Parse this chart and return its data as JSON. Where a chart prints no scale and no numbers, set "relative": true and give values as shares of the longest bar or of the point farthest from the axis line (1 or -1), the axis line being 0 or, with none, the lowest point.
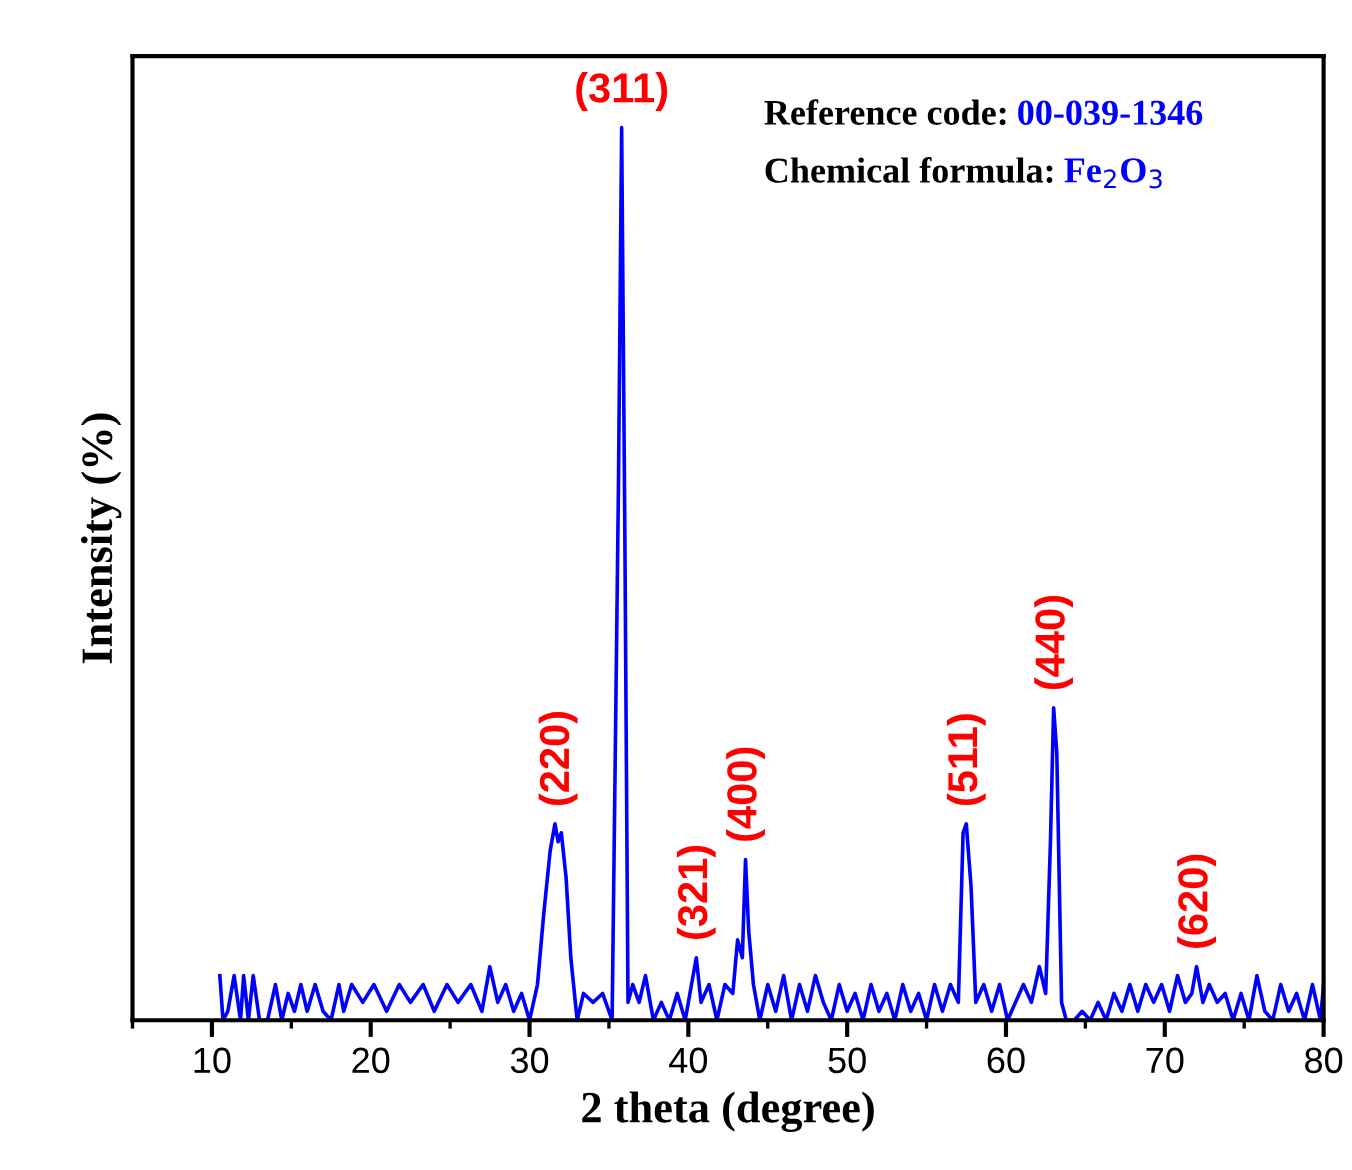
{
  "chart_data": {
    "type": "line",
    "relative": true,
    "xlabel": "2 theta (degree)",
    "ylabel": "Intensity (%)",
    "xlim": [
      5,
      80
    ],
    "xticks": [
      10,
      20,
      30,
      40,
      50,
      60,
      70,
      80
    ],
    "tick_labels": "x",
    "grid": false,
    "legend": false,
    "marker": "none",
    "line_style": "solid",
    "series": [
      {
        "color": "#0000ff",
        "x": [
          10.5,
          10.7,
          11.0,
          11.4,
          11.8,
          12.0,
          12.3,
          12.6,
          13.0,
          13.5,
          14.0,
          14.4,
          14.8,
          15.2,
          15.6,
          16.0,
          16.5,
          17.0,
          17.5,
          18.0,
          18.3,
          18.8,
          19.5,
          20.2,
          21.0,
          21.8,
          22.5,
          23.3,
          24.0,
          24.8,
          25.5,
          26.3,
          27.0,
          27.5,
          28.0,
          28.5,
          29.0,
          29.5,
          30.0,
          30.5,
          30.9,
          31.3,
          31.6,
          31.8,
          32.0,
          32.3,
          32.6,
          33.0,
          33.4,
          34.0,
          34.6,
          35.2,
          35.6,
          35.8,
          36.0,
          36.2,
          36.5,
          36.9,
          37.3,
          37.8,
          38.3,
          38.8,
          39.3,
          39.8,
          40.2,
          40.5,
          40.8,
          41.3,
          41.8,
          42.3,
          42.8,
          43.1,
          43.4,
          43.6,
          43.8,
          44.1,
          44.5,
          45.0,
          45.5,
          46.0,
          46.5,
          47.0,
          47.5,
          48.0,
          48.5,
          49.0,
          49.5,
          50.0,
          50.5,
          51.0,
          51.5,
          52.0,
          52.5,
          53.0,
          53.5,
          54.0,
          54.5,
          55.0,
          55.5,
          56.0,
          56.5,
          57.0,
          57.3,
          57.5,
          57.8,
          58.1,
          58.6,
          59.1,
          59.6,
          60.1,
          60.6,
          61.1,
          61.6,
          62.1,
          62.5,
          62.8,
          63.0,
          63.2,
          63.5,
          63.8,
          64.3,
          64.8,
          65.3,
          65.8,
          66.3,
          66.8,
          67.3,
          67.8,
          68.3,
          68.8,
          69.3,
          69.8,
          70.3,
          70.8,
          71.3,
          71.7,
          72.0,
          72.4,
          72.8,
          73.3,
          73.8,
          74.3,
          74.8,
          75.3,
          75.8,
          76.3,
          76.8,
          77.3,
          77.8,
          78.3,
          78.8,
          79.3,
          79.8,
          80.0
        ],
        "values": [
          0.05,
          0.0,
          0.01,
          0.05,
          0.0,
          0.05,
          0.0,
          0.05,
          0.0,
          0.0,
          0.04,
          0.0,
          0.03,
          0.01,
          0.04,
          0.01,
          0.04,
          0.01,
          0.0,
          0.04,
          0.01,
          0.04,
          0.02,
          0.04,
          0.01,
          0.04,
          0.02,
          0.04,
          0.01,
          0.04,
          0.02,
          0.04,
          0.01,
          0.06,
          0.02,
          0.04,
          0.01,
          0.03,
          0.0,
          0.04,
          0.12,
          0.19,
          0.22,
          0.2,
          0.21,
          0.16,
          0.07,
          0.0,
          0.03,
          0.02,
          0.03,
          0.0,
          0.6,
          1.0,
          0.55,
          0.02,
          0.04,
          0.02,
          0.05,
          0.0,
          0.02,
          0.0,
          0.03,
          0.0,
          0.04,
          0.07,
          0.02,
          0.04,
          0.0,
          0.04,
          0.03,
          0.09,
          0.07,
          0.18,
          0.1,
          0.04,
          0.0,
          0.04,
          0.01,
          0.05,
          0.0,
          0.04,
          0.01,
          0.05,
          0.02,
          0.0,
          0.04,
          0.01,
          0.03,
          0.0,
          0.04,
          0.01,
          0.03,
          0.0,
          0.04,
          0.01,
          0.03,
          0.0,
          0.04,
          0.01,
          0.04,
          0.02,
          0.21,
          0.22,
          0.15,
          0.02,
          0.04,
          0.01,
          0.04,
          0.0,
          0.02,
          0.04,
          0.02,
          0.06,
          0.03,
          0.2,
          0.35,
          0.3,
          0.02,
          0.0,
          0.0,
          0.01,
          0.0,
          0.02,
          0.0,
          0.03,
          0.01,
          0.04,
          0.01,
          0.04,
          0.02,
          0.04,
          0.01,
          0.05,
          0.02,
          0.03,
          0.06,
          0.02,
          0.04,
          0.02,
          0.03,
          0.0,
          0.03,
          0.0,
          0.05,
          0.01,
          0.0,
          0.04,
          0.01,
          0.03,
          0.0,
          0.04,
          0.0,
          0.04
        ]
      }
    ],
    "annotations": [
      {
        "text": "(220)",
        "x": 31.8,
        "y": 0.22
      },
      {
        "text": "(311)",
        "x": 35.8,
        "y": 1.0
      },
      {
        "text": "(321)",
        "x": 40.5,
        "y": 0.07
      },
      {
        "text": "(400)",
        "x": 43.6,
        "y": 0.18
      },
      {
        "text": "(511)",
        "x": 57.5,
        "y": 0.22
      },
      {
        "text": "(440)",
        "x": 63.0,
        "y": 0.35
      },
      {
        "text": "(620)",
        "x": 72.0,
        "y": 0.06
      },
      "Reference code: 00-039-1346",
      "Chemical formula: Fe$_{2}$O$_{3}$"
    ]
  }
}
